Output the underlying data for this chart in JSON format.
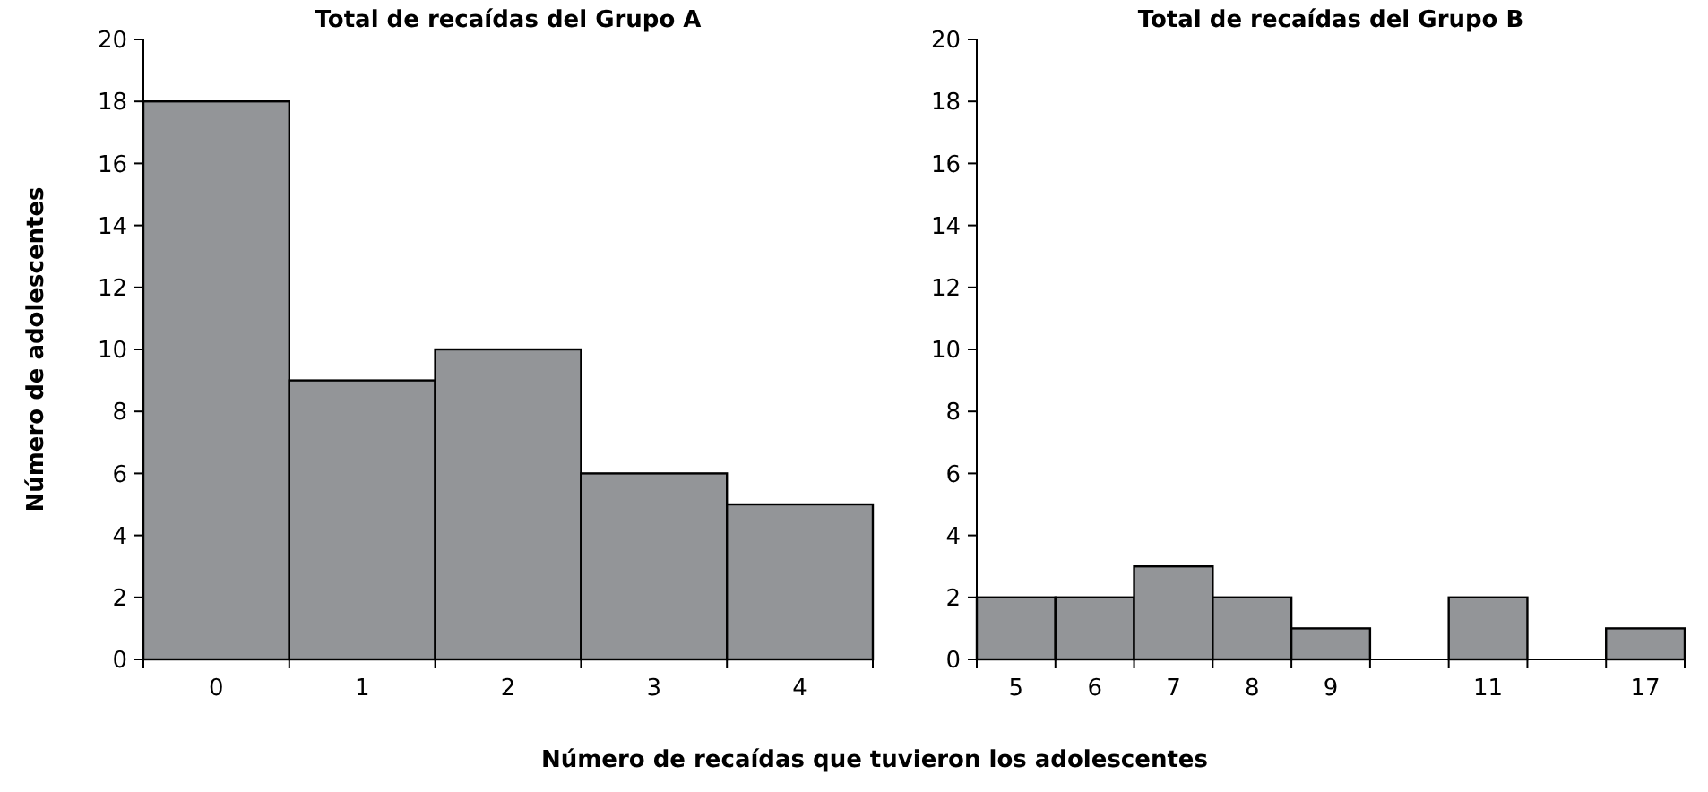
{
  "chart_data": [
    {
      "type": "bar",
      "title": "Total de recaídas del Grupo A",
      "ylabel": "Número de adolescentes",
      "xlabel": "Número de recaídas que tuvieron los adolescentes",
      "categories": [
        "0",
        "1",
        "2",
        "3",
        "4"
      ],
      "values": [
        18,
        9,
        10,
        6,
        5
      ],
      "color": "#939598",
      "ylim": [
        0,
        20
      ],
      "yticks": [
        0,
        2,
        4,
        6,
        8,
        10,
        12,
        14,
        16,
        18,
        20
      ],
      "grid": false
    },
    {
      "type": "bar",
      "title": "Total de recaídas del Grupo B",
      "categories": [
        "5",
        "6",
        "7",
        "8",
        "9",
        null,
        "11",
        null,
        "17"
      ],
      "values": [
        2,
        2,
        3,
        2,
        1,
        null,
        2,
        null,
        1
      ],
      "color": "#939598",
      "ylim": [
        0,
        20
      ],
      "yticks": [
        0,
        2,
        4,
        6,
        8,
        10,
        12,
        14,
        16,
        18,
        20
      ],
      "grid": false
    }
  ]
}
